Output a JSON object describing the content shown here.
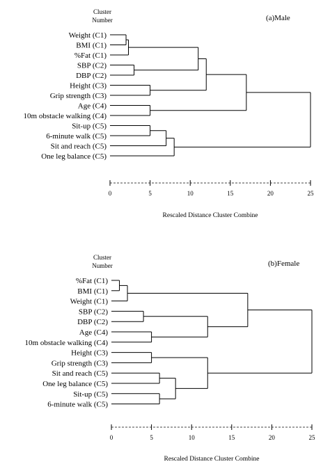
{
  "chart_data": [
    {
      "type": "dendrogram",
      "panel_label": "(a)Male",
      "header": [
        "Cluster",
        "Number"
      ],
      "xlabel": "Rescaled Distance Cluster Combine",
      "xlim": [
        0,
        25
      ],
      "xticks": [
        0,
        5,
        10,
        15,
        20,
        25
      ],
      "leaves": [
        "Weight (C1)",
        "BMI (C1)",
        "%Fat (C1)",
        "SBP (C2)",
        "DBP (C2)",
        "Height (C3)",
        "Grip strength (C3)",
        "Age (C4)",
        "10m obstacle walking (C4)",
        "Sit-up (C5)",
        "6-minute walk (C5)",
        "Sit and reach (C5)",
        "One leg balance (C5)"
      ],
      "merges": [
        {
          "a": 0,
          "b": 1,
          "height": 2
        },
        {
          "a": 13,
          "b": 2,
          "height": 2.3
        },
        {
          "a": 3,
          "b": 4,
          "height": 3
        },
        {
          "a": 5,
          "b": 6,
          "height": 5
        },
        {
          "a": 7,
          "b": 8,
          "height": 5
        },
        {
          "a": 9,
          "b": 10,
          "height": 5
        },
        {
          "a": 18,
          "b": 11,
          "height": 7
        },
        {
          "a": 19,
          "b": 12,
          "height": 8
        },
        {
          "a": 14,
          "b": 15,
          "height": 11
        },
        {
          "a": 21,
          "b": 16,
          "height": 12
        },
        {
          "a": 22,
          "b": 17,
          "height": 17
        },
        {
          "a": 23,
          "b": 20,
          "height": 25
        }
      ]
    },
    {
      "type": "dendrogram",
      "panel_label": "(b)Female",
      "header": [
        "Cluster",
        "Number"
      ],
      "xlabel": "Rescaled Distance Cluster Combine",
      "xlim": [
        0,
        25
      ],
      "xticks": [
        0,
        5,
        10,
        15,
        20,
        25
      ],
      "leaves": [
        "%Fat (C1)",
        "BMI (C1)",
        "Weight (C1)",
        "SBP (C2)",
        "DBP (C2)",
        "Age (C4)",
        "10m obstacle walking (C4)",
        "Height (C3)",
        "Grip strength (C3)",
        "Sit and reach (C5)",
        "One leg balance (C5)",
        "Sit-up (C5)",
        "6-minute walk (C5)"
      ],
      "merges": [
        {
          "a": 0,
          "b": 1,
          "height": 1
        },
        {
          "a": 13,
          "b": 2,
          "height": 2
        },
        {
          "a": 3,
          "b": 4,
          "height": 4
        },
        {
          "a": 5,
          "b": 6,
          "height": 5
        },
        {
          "a": 7,
          "b": 8,
          "height": 5
        },
        {
          "a": 9,
          "b": 10,
          "height": 6
        },
        {
          "a": 11,
          "b": 12,
          "height": 6
        },
        {
          "a": 15,
          "b": 16,
          "height": 12
        },
        {
          "a": 18,
          "b": 19,
          "height": 8
        },
        {
          "a": 17,
          "b": 21,
          "height": 12
        },
        {
          "a": 14,
          "b": 20,
          "height": 17
        },
        {
          "a": 23,
          "b": 22,
          "height": 25
        }
      ]
    }
  ]
}
